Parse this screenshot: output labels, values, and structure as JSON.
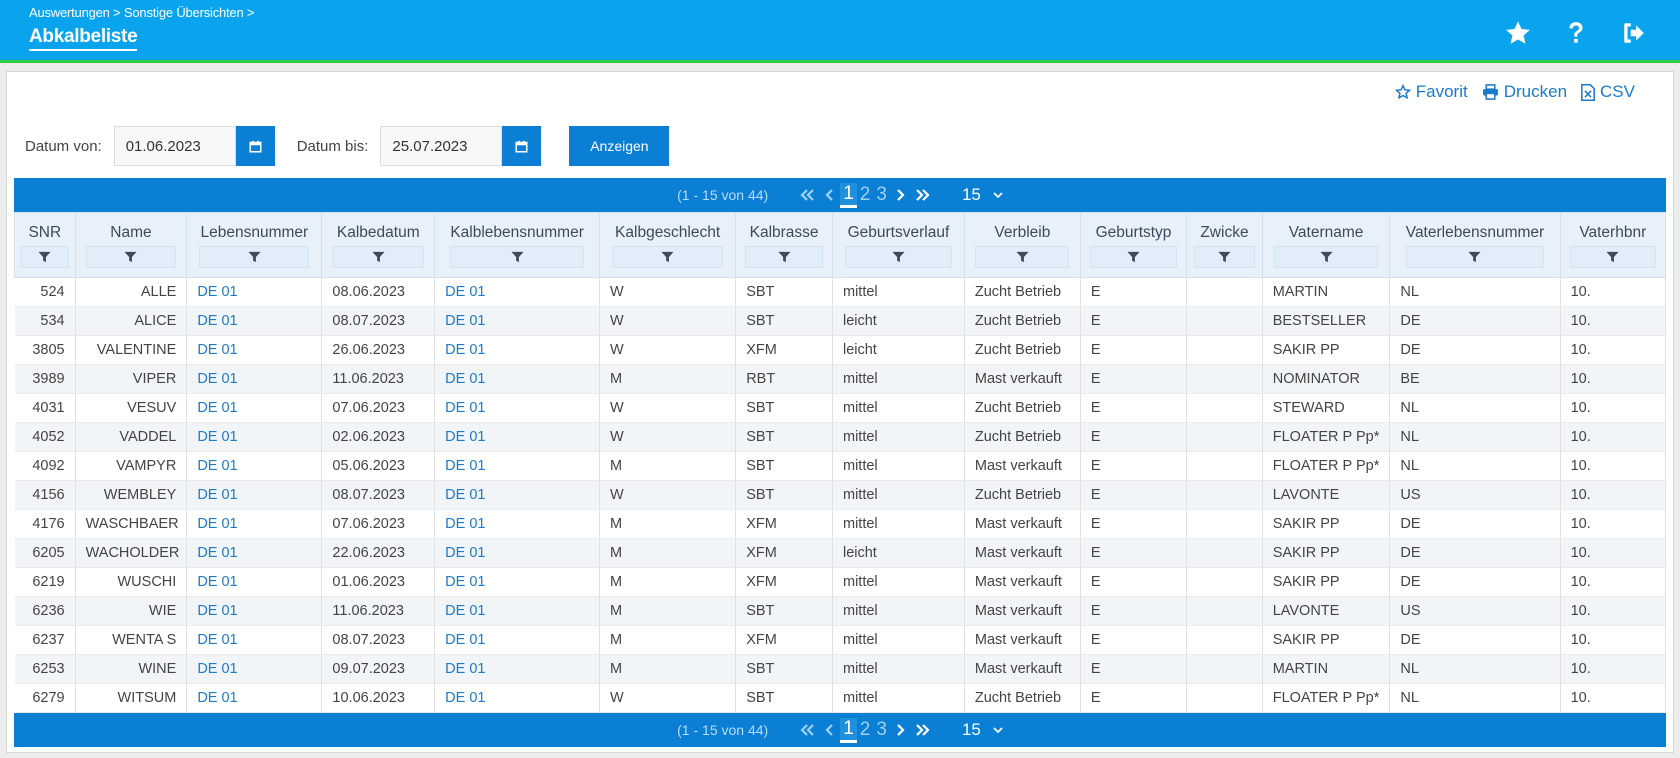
{
  "header": {
    "breadcrumb": "Auswertungen > Sonstige Übersichten >",
    "title": "Abkalbeliste"
  },
  "actions": {
    "favorit": "Favorit",
    "drucken": "Drucken",
    "csv": "CSV"
  },
  "filters": {
    "from_label": "Datum von:",
    "from_value": "01.06.2023",
    "to_label": "Datum bis:",
    "to_value": "25.07.2023",
    "show_button": "Anzeigen"
  },
  "pager": {
    "range": "(1 - 15 von 44)",
    "pages": [
      "1",
      "2",
      "3"
    ],
    "current": "1",
    "page_size": "15"
  },
  "columns": [
    "SNR",
    "Name",
    "Lebensnummer",
    "Kalbedatum",
    "Kalblebensnummer",
    "Kalbgeschlecht",
    "Kalbrasse",
    "Geburtsverlauf",
    "Verbleib",
    "Geburtstyp",
    "Zwicke",
    "Vatername",
    "Vaterlebensnummer",
    "Vaterhbnr"
  ],
  "rows": [
    [
      "524",
      "ALLE",
      "DE 01",
      "08.06.2023",
      "DE 01",
      "W",
      "SBT",
      "mittel",
      "Zucht Betrieb",
      "E",
      "",
      "MARTIN",
      "NL",
      "10."
    ],
    [
      "534",
      "ALICE",
      "DE 01",
      "08.07.2023",
      "DE 01",
      "W",
      "SBT",
      "leicht",
      "Zucht Betrieb",
      "E",
      "",
      "BESTSELLER",
      "DE",
      "10."
    ],
    [
      "3805",
      "VALENTINE",
      "DE 01",
      "26.06.2023",
      "DE 01",
      "W",
      "XFM",
      "leicht",
      "Zucht Betrieb",
      "E",
      "",
      "SAKIR PP",
      "DE",
      "10."
    ],
    [
      "3989",
      "VIPER",
      "DE 01",
      "11.06.2023",
      "DE 01",
      "M",
      "RBT",
      "mittel",
      "Mast verkauft",
      "E",
      "",
      "NOMINATOR",
      "BE",
      "10."
    ],
    [
      "4031",
      "VESUV",
      "DE 01",
      "07.06.2023",
      "DE 01",
      "W",
      "SBT",
      "mittel",
      "Zucht Betrieb",
      "E",
      "",
      "STEWARD",
      "NL",
      "10."
    ],
    [
      "4052",
      "VADDEL",
      "DE 01",
      "02.06.2023",
      "DE 01",
      "W",
      "SBT",
      "mittel",
      "Zucht Betrieb",
      "E",
      "",
      "FLOATER P Pp*",
      "NL",
      "10."
    ],
    [
      "4092",
      "VAMPYR",
      "DE 01",
      "05.06.2023",
      "DE 01",
      "M",
      "SBT",
      "mittel",
      "Mast verkauft",
      "E",
      "",
      "FLOATER P Pp*",
      "NL",
      "10."
    ],
    [
      "4156",
      "WEMBLEY",
      "DE 01",
      "08.07.2023",
      "DE 01",
      "W",
      "SBT",
      "mittel",
      "Zucht Betrieb",
      "E",
      "",
      "LAVONTE",
      "US",
      "10."
    ],
    [
      "4176",
      "WASCHBAER",
      "DE 01",
      "07.06.2023",
      "DE 01",
      "M",
      "XFM",
      "mittel",
      "Mast verkauft",
      "E",
      "",
      "SAKIR PP",
      "DE",
      "10."
    ],
    [
      "6205",
      "WACHOLDER",
      "DE 01",
      "22.06.2023",
      "DE 01",
      "M",
      "XFM",
      "leicht",
      "Mast verkauft",
      "E",
      "",
      "SAKIR PP",
      "DE",
      "10."
    ],
    [
      "6219",
      "WUSCHI",
      "DE 01",
      "01.06.2023",
      "DE 01",
      "M",
      "XFM",
      "mittel",
      "Mast verkauft",
      "E",
      "",
      "SAKIR PP",
      "DE",
      "10."
    ],
    [
      "6236",
      "WIE",
      "DE 01",
      "11.06.2023",
      "DE 01",
      "M",
      "SBT",
      "mittel",
      "Mast verkauft",
      "E",
      "",
      "LAVONTE",
      "US",
      "10."
    ],
    [
      "6237",
      "WENTA S",
      "DE 01",
      "08.07.2023",
      "DE 01",
      "M",
      "XFM",
      "mittel",
      "Mast verkauft",
      "E",
      "",
      "SAKIR PP",
      "DE",
      "10."
    ],
    [
      "6253",
      "WINE",
      "DE 01",
      "09.07.2023",
      "DE 01",
      "M",
      "SBT",
      "mittel",
      "Mast verkauft",
      "E",
      "",
      "MARTIN",
      "NL",
      "10."
    ],
    [
      "6279",
      "WITSUM",
      "DE 01",
      "10.06.2023",
      "DE 01",
      "W",
      "SBT",
      "mittel",
      "Zucht Betrieb",
      "E",
      "",
      "FLOATER P Pp*",
      "NL",
      "10."
    ]
  ],
  "icons": {
    "favorite": "star-icon",
    "help": "question-icon",
    "logout": "logout-icon",
    "calendar": "calendar-icon",
    "filter": "filter-icon",
    "print": "print-icon",
    "csv": "csv-icon"
  },
  "colors": {
    "header": "#0aa4ee",
    "accent": "#0a7fd3",
    "header_border": "#2ecc40",
    "link": "#1a7bc8"
  }
}
